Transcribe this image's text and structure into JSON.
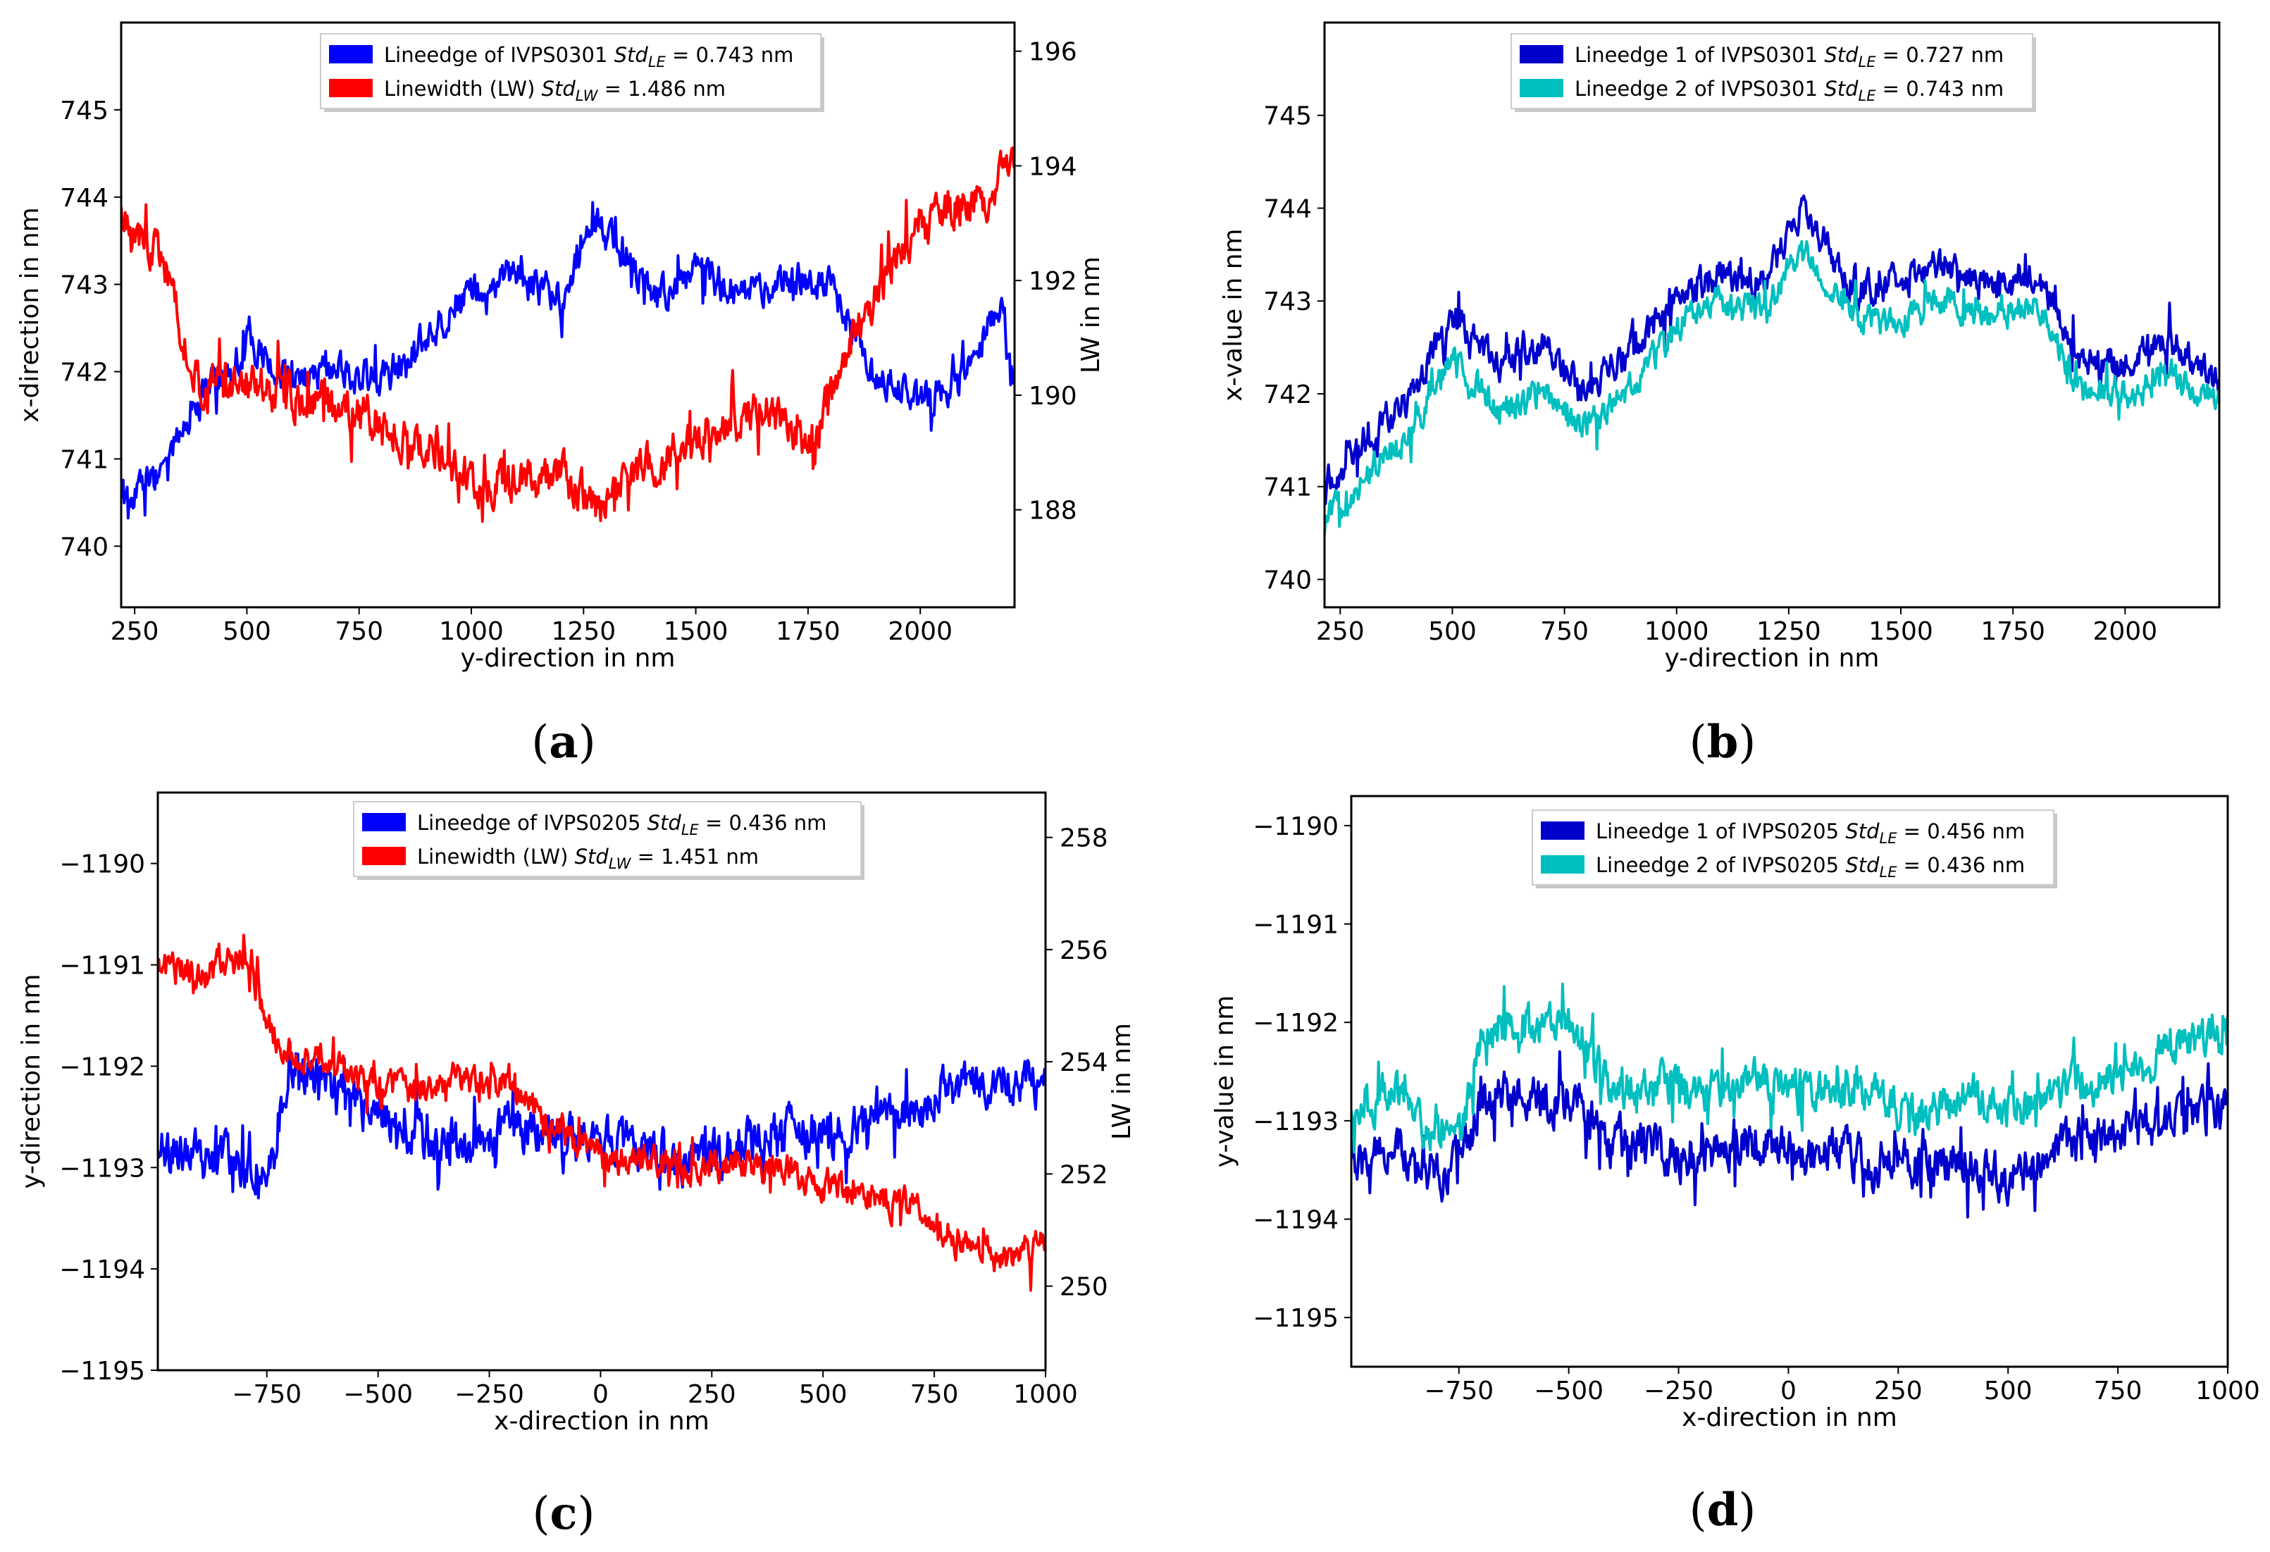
{
  "chart_data": [
    {
      "type": "line",
      "panel": "(a)",
      "xlabel": "y-direction in nm",
      "ylabel": "x-direction in nm",
      "ylabel_right": "LW in nm",
      "xlim": [
        220,
        2210
      ],
      "ylim": [
        739.3,
        746.0
      ],
      "ylim_right": [
        186.3,
        196.5
      ],
      "xticks": [
        "250",
        "500",
        "750",
        "1000",
        "1250",
        "1500",
        "1750",
        "2000"
      ],
      "yticks": [
        "740",
        "741",
        "742",
        "743",
        "744",
        "745"
      ],
      "yticks_right": [
        "188",
        "190",
        "192",
        "194",
        "196"
      ],
      "legend": [
        {
          "label": "Lineedge of IVPS0301 Std",
          "sub": "LE",
          "value": " = 0.743 nm",
          "color": "#0000ff"
        },
        {
          "label": "Linewidth (LW) Std",
          "sub": "LW",
          "value": " = 1.486 nm",
          "color": "#ff0000"
        }
      ],
      "series": [
        {
          "name": "Lineedge of IVPS0301",
          "axis": "left",
          "color": "#0000ff",
          "x": [
            220,
            300,
            400,
            500,
            600,
            700,
            800,
            900,
            1000,
            1100,
            1200,
            1280,
            1350,
            1400,
            1500,
            1600,
            1700,
            1800,
            1900,
            2000,
            2100,
            2180,
            2210
          ],
          "y": [
            740.5,
            740.8,
            741.7,
            742.3,
            741.9,
            742.0,
            741.9,
            742.4,
            742.9,
            743.1,
            742.8,
            743.7,
            743.3,
            742.8,
            743.1,
            742.9,
            743.1,
            743.0,
            742.0,
            741.6,
            742.0,
            742.8,
            741.8
          ],
          "noise": 0.25
        },
        {
          "name": "Linewidth (LW)",
          "axis": "right",
          "color": "#ff0000",
          "x": [
            220,
            300,
            400,
            500,
            600,
            700,
            800,
            900,
            1000,
            1100,
            1200,
            1280,
            1350,
            1450,
            1550,
            1650,
            1750,
            1850,
            1950,
            2050,
            2150,
            2210
          ],
          "y": [
            193.2,
            192.5,
            190.0,
            190.3,
            190.0,
            189.8,
            189.6,
            189.0,
            188.5,
            188.5,
            188.6,
            188.0,
            188.5,
            189.0,
            189.4,
            189.8,
            189.0,
            191.0,
            192.5,
            193.2,
            193.5,
            194.0
          ],
          "noise": 0.45
        }
      ]
    },
    {
      "type": "line",
      "panel": "(b)",
      "xlabel": "y-direction in nm",
      "ylabel": "x-value in nm",
      "xlim": [
        215,
        2210
      ],
      "ylim": [
        739.7,
        746.0
      ],
      "xticks": [
        "250",
        "500",
        "750",
        "1000",
        "1250",
        "1500",
        "1750",
        "2000"
      ],
      "yticks": [
        "740",
        "741",
        "742",
        "743",
        "744",
        "745"
      ],
      "legend": [
        {
          "label": "Lineedge 1 of IVPS0301 Std",
          "sub": "LE",
          "value": " = 0.727 nm",
          "color": "#0000cc"
        },
        {
          "label": "Lineedge 2 of IVPS0301 Std",
          "sub": "LE",
          "value": " = 0.743 nm",
          "color": "#00bfbf"
        }
      ],
      "series": [
        {
          "name": "Lineedge 1 of IVPS0301",
          "axis": "left",
          "color": "#0000cc",
          "x": [
            215,
            300,
            400,
            500,
            600,
            700,
            800,
            900,
            1000,
            1100,
            1200,
            1280,
            1400,
            1500,
            1600,
            1700,
            1800,
            1900,
            2000,
            2100,
            2210
          ],
          "y": [
            741.0,
            741.5,
            741.9,
            742.8,
            742.3,
            742.5,
            742.0,
            742.5,
            743.0,
            743.3,
            743.2,
            744.0,
            743.1,
            743.2,
            743.4,
            743.1,
            743.3,
            742.4,
            742.3,
            742.6,
            742.1
          ],
          "noise": 0.22
        },
        {
          "name": "Lineedge 2 of IVPS0301",
          "axis": "left",
          "color": "#00bfbf",
          "x": [
            215,
            300,
            400,
            500,
            600,
            700,
            800,
            900,
            1000,
            1100,
            1200,
            1280,
            1400,
            1500,
            1600,
            1700,
            1800,
            1900,
            2000,
            2100,
            2210
          ],
          "y": [
            740.6,
            741.1,
            741.5,
            742.4,
            741.8,
            742.0,
            741.6,
            742.1,
            742.7,
            743.0,
            742.9,
            743.6,
            742.8,
            742.8,
            743.0,
            742.8,
            743.0,
            742.0,
            742.0,
            742.2,
            741.9
          ],
          "noise": 0.2
        }
      ]
    },
    {
      "type": "line",
      "panel": "(c)",
      "xlabel": "x-direction in nm",
      "ylabel": "y-direction in nm",
      "ylabel_right": "LW in nm",
      "xlim": [
        -995,
        1000
      ],
      "ylim": [
        -1195.0,
        -1189.3
      ],
      "ylim_right": [
        248.5,
        258.8
      ],
      "xticks": [
        "−750",
        "−500",
        "−250",
        "0",
        "250",
        "500",
        "750",
        "1000"
      ],
      "yticks": [
        "−1195",
        "−1194",
        "−1193",
        "−1192",
        "−1191",
        "−1190"
      ],
      "yticks_right": [
        "250",
        "252",
        "254",
        "256",
        "258"
      ],
      "legend": [
        {
          "label": "Lineedge of IVPS0205 Std",
          "sub": "LE",
          "value": " = 0.436 nm",
          "color": "#0000ff"
        },
        {
          "label": "Linewidth (LW) Std",
          "sub": "LW",
          "value": " = 1.451 nm",
          "color": "#ff0000"
        }
      ],
      "series": [
        {
          "name": "Lineedge of IVPS0205",
          "axis": "left",
          "color": "#0000ff",
          "x": [
            -995,
            -900,
            -800,
            -740,
            -700,
            -600,
            -500,
            -400,
            -300,
            -200,
            -100,
            0,
            100,
            200,
            300,
            400,
            500,
            600,
            700,
            800,
            900,
            1000
          ],
          "y": [
            -1192.8,
            -1192.9,
            -1193.0,
            -1192.9,
            -1192.0,
            -1192.2,
            -1192.5,
            -1192.7,
            -1192.8,
            -1192.6,
            -1192.7,
            -1192.7,
            -1192.8,
            -1192.9,
            -1192.8,
            -1192.6,
            -1192.7,
            -1192.6,
            -1192.5,
            -1192.2,
            -1192.1,
            -1192.2
          ],
          "noise": 0.28
        },
        {
          "name": "Linewidth (LW)",
          "axis": "right",
          "color": "#ff0000",
          "x": [
            -995,
            -900,
            -800,
            -740,
            -700,
            -600,
            -500,
            -400,
            -300,
            -200,
            -100,
            0,
            100,
            200,
            300,
            400,
            500,
            600,
            700,
            800,
            900,
            1000
          ],
          "y": [
            255.8,
            255.5,
            255.9,
            254.5,
            254.2,
            254.0,
            253.5,
            253.5,
            253.7,
            253.6,
            252.8,
            252.3,
            252.3,
            252.0,
            252.2,
            252.2,
            251.8,
            251.6,
            251.4,
            250.8,
            250.5,
            250.8
          ],
          "noise": 0.35
        }
      ]
    },
    {
      "type": "line",
      "panel": "(d)",
      "xlabel": "x-direction in nm",
      "ylabel": "y-value in nm",
      "xlim": [
        -995,
        1000
      ],
      "ylim": [
        -1195.5,
        -1189.7
      ],
      "xticks": [
        "−750",
        "−500",
        "−250",
        "0",
        "250",
        "500",
        "750",
        "1000"
      ],
      "yticks": [
        "−1195",
        "−1194",
        "−1193",
        "−1192",
        "−1191",
        "−1190"
      ],
      "legend": [
        {
          "label": "Lineedge 1 of IVPS0205 Std",
          "sub": "LE",
          "value": " = 0.456 nm",
          "color": "#0000cc"
        },
        {
          "label": "Lineedge 2 of IVPS0205 Std",
          "sub": "LE",
          "value": " = 0.436 nm",
          "color": "#00bfbf"
        }
      ],
      "series": [
        {
          "name": "Lineedge 1 of IVPS0205",
          "axis": "left",
          "color": "#0000cc",
          "x": [
            -995,
            -900,
            -800,
            -740,
            -700,
            -600,
            -500,
            -400,
            -300,
            -200,
            -100,
            0,
            100,
            200,
            300,
            400,
            500,
            600,
            700,
            800,
            900,
            1000
          ],
          "y": [
            -1193.5,
            -1193.3,
            -1193.6,
            -1193.4,
            -1192.8,
            -1192.7,
            -1192.8,
            -1193.2,
            -1193.3,
            -1193.4,
            -1193.2,
            -1193.3,
            -1193.3,
            -1193.5,
            -1193.4,
            -1193.4,
            -1193.6,
            -1193.3,
            -1193.2,
            -1193.1,
            -1192.9,
            -1192.9
          ],
          "noise": 0.28
        },
        {
          "name": "Lineedge 2 of IVPS0205",
          "axis": "left",
          "color": "#00bfbf",
          "x": [
            -995,
            -900,
            -800,
            -740,
            -700,
            -600,
            -500,
            -400,
            -300,
            -200,
            -100,
            0,
            100,
            200,
            300,
            400,
            500,
            600,
            700,
            800,
            900,
            1000
          ],
          "y": [
            -1193.0,
            -1192.7,
            -1193.2,
            -1193.0,
            -1192.2,
            -1192.0,
            -1192.0,
            -1192.7,
            -1192.6,
            -1192.7,
            -1192.6,
            -1192.6,
            -1192.7,
            -1192.8,
            -1193.0,
            -1192.7,
            -1192.9,
            -1192.7,
            -1192.6,
            -1192.5,
            -1192.2,
            -1192.2
          ],
          "noise": 0.25
        }
      ]
    }
  ]
}
